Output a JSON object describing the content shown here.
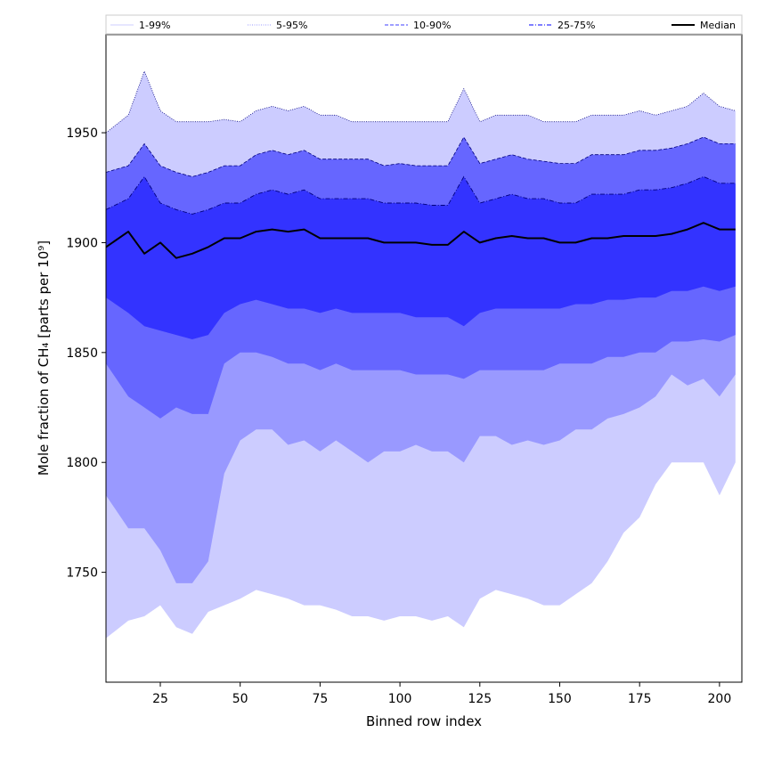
{
  "chart_data": {
    "type": "area",
    "title": "",
    "xlabel": "Binned row index",
    "ylabel": "Mole fraction of CH₄ [parts per 10⁹]",
    "xlim": [
      8,
      207
    ],
    "ylim": [
      1700,
      1995
    ],
    "x_ticks": [
      25,
      50,
      75,
      100,
      125,
      150,
      175,
      200
    ],
    "y_ticks": [
      1750,
      1800,
      1850,
      1900,
      1950
    ],
    "grid": false,
    "legend_position": "top",
    "legend": [
      "1-99%",
      "5-95%",
      "10-90%",
      "25-75%",
      "Median"
    ],
    "colors": {
      "band_1_99": "#ccccff",
      "band_5_95": "#9999ff",
      "band_10_90": "#6666ff",
      "band_25_75": "#3333ff",
      "median": "#000000",
      "outline": "#00007f"
    },
    "x": [
      8,
      15,
      20,
      25,
      30,
      35,
      40,
      45,
      50,
      55,
      60,
      65,
      70,
      75,
      80,
      85,
      90,
      95,
      100,
      105,
      110,
      115,
      120,
      125,
      130,
      135,
      140,
      145,
      150,
      155,
      160,
      165,
      170,
      175,
      180,
      185,
      190,
      195,
      200,
      205
    ],
    "series": [
      {
        "name": "1-99%",
        "lower": [
          1720,
          1728,
          1730,
          1735,
          1725,
          1722,
          1732,
          1735,
          1738,
          1742,
          1740,
          1738,
          1735,
          1735,
          1733,
          1730,
          1730,
          1728,
          1730,
          1730,
          1728,
          1730,
          1725,
          1738,
          1742,
          1740,
          1738,
          1735,
          1735,
          1740,
          1745,
          1755,
          1768,
          1775,
          1790,
          1800,
          1800,
          1800,
          1785,
          1800
        ],
        "upper": [
          1950,
          1958,
          1978,
          1960,
          1955,
          1955,
          1955,
          1956,
          1955,
          1960,
          1962,
          1960,
          1962,
          1958,
          1958,
          1955,
          1955,
          1955,
          1955,
          1955,
          1955,
          1955,
          1970,
          1955,
          1958,
          1958,
          1958,
          1955,
          1955,
          1955,
          1958,
          1958,
          1958,
          1960,
          1958,
          1960,
          1962,
          1968,
          1962,
          1960
        ]
      },
      {
        "name": "5-95%",
        "lower": [
          1785,
          1770,
          1770,
          1760,
          1745,
          1745,
          1755,
          1795,
          1810,
          1815,
          1815,
          1808,
          1810,
          1805,
          1810,
          1805,
          1800,
          1805,
          1805,
          1808,
          1805,
          1805,
          1800,
          1812,
          1812,
          1808,
          1810,
          1808,
          1810,
          1815,
          1815,
          1820,
          1822,
          1825,
          1830,
          1840,
          1835,
          1838,
          1830,
          1840
        ]
      },
      {
        "name": "10-90%",
        "lower": [
          1845,
          1830,
          1825,
          1820,
          1825,
          1822,
          1822,
          1845,
          1850,
          1850,
          1848,
          1845,
          1845,
          1842,
          1845,
          1842,
          1842,
          1842,
          1842,
          1840,
          1840,
          1840,
          1838,
          1842,
          1842,
          1842,
          1842,
          1842,
          1845,
          1845,
          1845,
          1848,
          1848,
          1850,
          1850,
          1855,
          1855,
          1856,
          1855,
          1858
        ],
        "upper": [
          1932,
          1935,
          1945,
          1935,
          1932,
          1930,
          1932,
          1935,
          1935,
          1940,
          1942,
          1940,
          1942,
          1938,
          1938,
          1938,
          1938,
          1935,
          1936,
          1935,
          1935,
          1935,
          1948,
          1936,
          1938,
          1940,
          1938,
          1937,
          1936,
          1936,
          1940,
          1940,
          1940,
          1942,
          1942,
          1943,
          1945,
          1948,
          1945,
          1945
        ]
      },
      {
        "name": "25-75%",
        "lower": [
          1875,
          1868,
          1862,
          1860,
          1858,
          1856,
          1858,
          1868,
          1872,
          1874,
          1872,
          1870,
          1870,
          1868,
          1870,
          1868,
          1868,
          1868,
          1868,
          1866,
          1866,
          1866,
          1862,
          1868,
          1870,
          1870,
          1870,
          1870,
          1870,
          1872,
          1872,
          1874,
          1874,
          1875,
          1875,
          1878,
          1878,
          1880,
          1878,
          1880
        ],
        "upper": [
          1915,
          1920,
          1930,
          1918,
          1915,
          1913,
          1915,
          1918,
          1918,
          1922,
          1924,
          1922,
          1924,
          1920,
          1920,
          1920,
          1920,
          1918,
          1918,
          1918,
          1917,
          1917,
          1930,
          1918,
          1920,
          1922,
          1920,
          1920,
          1918,
          1918,
          1922,
          1922,
          1922,
          1924,
          1924,
          1925,
          1927,
          1930,
          1927,
          1927
        ]
      },
      {
        "name": "Median",
        "values": [
          1898,
          1905,
          1895,
          1900,
          1893,
          1895,
          1898,
          1902,
          1902,
          1905,
          1906,
          1905,
          1906,
          1902,
          1902,
          1902,
          1902,
          1900,
          1900,
          1900,
          1899,
          1899,
          1905,
          1900,
          1902,
          1903,
          1902,
          1902,
          1900,
          1900,
          1902,
          1902,
          1903,
          1903,
          1903,
          1904,
          1906,
          1909,
          1906,
          1906
        ]
      }
    ]
  }
}
